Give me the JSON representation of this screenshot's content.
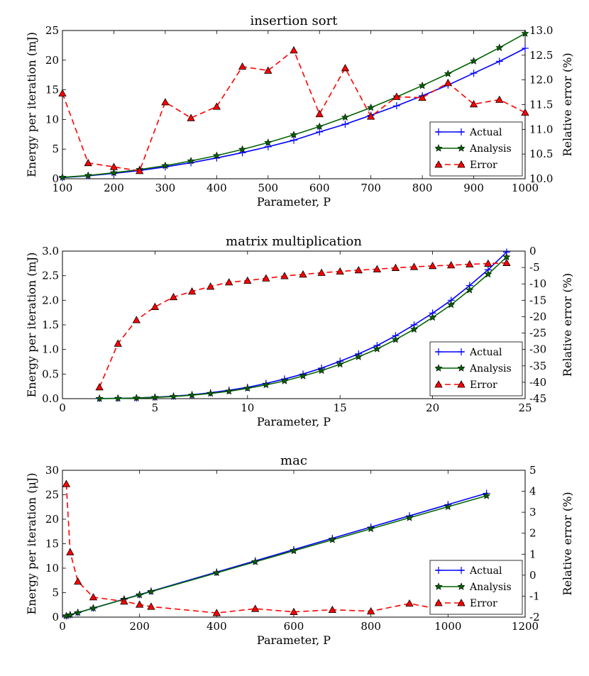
{
  "chart_data": [
    {
      "type": "line",
      "title": "insertion sort",
      "xlabel": "Parameter, P",
      "ylabel": "Energy per iteration (mJ)",
      "y2label": "Relative error (%)",
      "xlim": [
        100,
        1000
      ],
      "ylim": [
        0,
        25
      ],
      "y2lim": [
        10.0,
        13.0
      ],
      "xticks": [
        100,
        200,
        300,
        400,
        500,
        600,
        700,
        800,
        900,
        1000
      ],
      "yticks": [
        0,
        5,
        10,
        15,
        20,
        25
      ],
      "y2ticks": [
        "10.0",
        "10.5",
        "11.0",
        "11.5",
        "12.0",
        "12.5",
        "13.0"
      ],
      "legend_position": "lower-right",
      "series": [
        {
          "name": "Actual",
          "axis": "left",
          "color": "#0000ff",
          "marker": "plus",
          "x": [
            100,
            150,
            200,
            250,
            300,
            350,
            400,
            450,
            500,
            550,
            600,
            650,
            700,
            750,
            800,
            850,
            900,
            950,
            1000
          ],
          "y": [
            0.2,
            0.5,
            0.9,
            1.4,
            2.0,
            2.7,
            3.5,
            4.4,
            5.4,
            6.5,
            7.9,
            9.2,
            10.7,
            12.3,
            14.0,
            15.8,
            17.8,
            19.8,
            22.0
          ]
        },
        {
          "name": "Analysis",
          "axis": "left",
          "color": "#006400",
          "marker": "star",
          "x": [
            100,
            150,
            200,
            250,
            300,
            350,
            400,
            450,
            500,
            550,
            600,
            650,
            700,
            750,
            800,
            850,
            900,
            950,
            1000
          ],
          "y": [
            0.25,
            0.55,
            1.0,
            1.55,
            2.2,
            3.0,
            3.9,
            4.95,
            6.1,
            7.4,
            8.8,
            10.35,
            12.0,
            13.8,
            15.7,
            17.7,
            19.85,
            22.1,
            24.5
          ]
        },
        {
          "name": "Error",
          "axis": "right",
          "color": "#ff0000",
          "marker": "triangle",
          "dashed": true,
          "x": [
            100,
            150,
            200,
            250,
            300,
            350,
            400,
            450,
            500,
            550,
            600,
            650,
            700,
            750,
            800,
            850,
            900,
            950,
            1000
          ],
          "y": [
            11.73,
            10.32,
            10.24,
            10.16,
            11.55,
            11.23,
            11.46,
            12.27,
            12.19,
            12.6,
            11.31,
            12.24,
            11.26,
            11.66,
            11.64,
            11.94,
            11.51,
            11.6,
            11.34
          ]
        }
      ]
    },
    {
      "type": "line",
      "title": "matrix multiplication",
      "xlabel": "Parameter, P",
      "ylabel": "Energy per iteration (mJ)",
      "y2label": "Relative error (%)",
      "xlim": [
        0,
        25
      ],
      "ylim": [
        0,
        3.0
      ],
      "y2lim": [
        -45,
        0
      ],
      "xticks": [
        0,
        5,
        10,
        15,
        20,
        25
      ],
      "yticks": [
        "0.0",
        "0.5",
        "1.0",
        "1.5",
        "2.0",
        "2.5",
        "3.0"
      ],
      "y2ticks": [
        "-45",
        "-40",
        "-35",
        "-30",
        "-25",
        "-20",
        "-15",
        "-10",
        "-5",
        "0"
      ],
      "legend_position": "lower-right",
      "series": [
        {
          "name": "Actual",
          "axis": "left",
          "color": "#0000ff",
          "marker": "plus",
          "x": [
            2,
            3,
            4,
            5,
            6,
            7,
            8,
            9,
            10,
            11,
            12,
            13,
            14,
            15,
            16,
            17,
            18,
            19,
            20,
            21,
            22,
            23,
            24
          ],
          "y": [
            0.003,
            0.007,
            0.015,
            0.03,
            0.05,
            0.08,
            0.12,
            0.17,
            0.23,
            0.31,
            0.4,
            0.5,
            0.62,
            0.76,
            0.91,
            1.08,
            1.28,
            1.5,
            1.74,
            2.0,
            2.3,
            2.62,
            2.98
          ]
        },
        {
          "name": "Analysis",
          "axis": "left",
          "color": "#006400",
          "marker": "star",
          "x": [
            2,
            3,
            4,
            5,
            6,
            7,
            8,
            9,
            10,
            11,
            12,
            13,
            14,
            15,
            16,
            17,
            18,
            19,
            20,
            21,
            22,
            23,
            24
          ],
          "y": [
            0.002,
            0.005,
            0.012,
            0.025,
            0.043,
            0.07,
            0.105,
            0.15,
            0.21,
            0.28,
            0.36,
            0.46,
            0.57,
            0.7,
            0.85,
            1.01,
            1.2,
            1.41,
            1.65,
            1.91,
            2.21,
            2.53,
            2.88
          ]
        },
        {
          "name": "Error",
          "axis": "right",
          "color": "#ff0000",
          "marker": "triangle",
          "dashed": true,
          "x": [
            2,
            3,
            4,
            5,
            6,
            7,
            8,
            9,
            10,
            11,
            12,
            13,
            14,
            15,
            16,
            17,
            18,
            19,
            20,
            21,
            22,
            23,
            24
          ],
          "y": [
            -41.5,
            -28.2,
            -21.0,
            -17.0,
            -14.0,
            -12.3,
            -10.8,
            -9.5,
            -9.0,
            -8.3,
            -7.6,
            -7.1,
            -6.6,
            -6.2,
            -5.8,
            -5.5,
            -5.1,
            -4.8,
            -4.5,
            -4.3,
            -4.0,
            -3.8,
            -3.6
          ]
        }
      ]
    },
    {
      "type": "line",
      "title": "mac",
      "xlabel": "Parameter, P",
      "ylabel": "Energy per iteration (μJ)",
      "y2label": "Relative error (%)",
      "xlim": [
        0,
        1200
      ],
      "ylim": [
        0,
        30
      ],
      "y2lim": [
        -2,
        5
      ],
      "xticks": [
        0,
        200,
        400,
        600,
        800,
        1000,
        1200
      ],
      "yticks": [
        0,
        5,
        10,
        15,
        20,
        25,
        30
      ],
      "y2ticks": [
        -2,
        -1,
        0,
        1,
        2,
        3,
        4,
        5
      ],
      "legend_position": "lower-right",
      "series": [
        {
          "name": "Actual",
          "axis": "left",
          "color": "#0000ff",
          "marker": "plus",
          "x": [
            10,
            20,
            40,
            80,
            160,
            200,
            230,
            400,
            500,
            600,
            700,
            800,
            900,
            1000,
            1100
          ],
          "y": [
            0.23,
            0.46,
            0.92,
            1.84,
            3.68,
            4.6,
            5.29,
            9.2,
            11.5,
            13.8,
            16.1,
            18.4,
            20.7,
            23.0,
            25.3
          ]
        },
        {
          "name": "Analysis",
          "axis": "left",
          "color": "#006400",
          "marker": "star",
          "x": [
            10,
            20,
            40,
            80,
            160,
            200,
            230,
            400,
            500,
            600,
            700,
            800,
            900,
            1000,
            1100
          ],
          "y": [
            0.24,
            0.46,
            0.91,
            1.82,
            3.64,
            4.54,
            5.22,
            9.05,
            11.3,
            13.55,
            15.8,
            18.05,
            20.3,
            22.55,
            24.8
          ]
        },
        {
          "name": "Error",
          "axis": "right",
          "color": "#ff0000",
          "marker": "triangle",
          "dashed": true,
          "x": [
            10,
            20,
            40,
            80,
            160,
            200,
            230,
            400,
            500,
            600,
            700,
            800,
            900,
            1000,
            1100
          ],
          "y": [
            4.35,
            1.1,
            -0.3,
            -1.05,
            -1.25,
            -1.4,
            -1.5,
            -1.8,
            -1.6,
            -1.75,
            -1.65,
            -1.72,
            -1.35,
            -1.7,
            -1.7
          ]
        }
      ]
    }
  ]
}
